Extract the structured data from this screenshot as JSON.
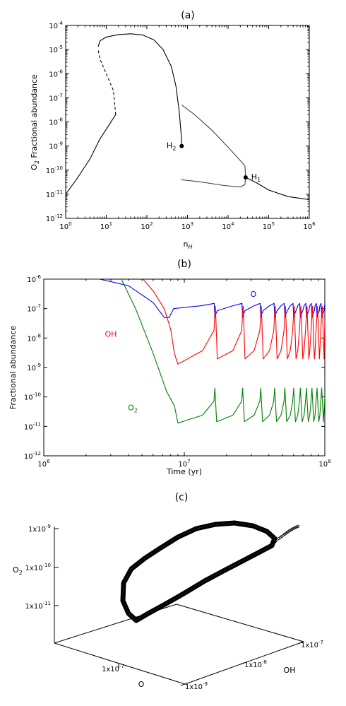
{
  "chart_data": [
    {
      "type": "line",
      "title": "(a)",
      "xlabel": "n_H",
      "ylabel": "O_2 Fractional abundance",
      "x_scale": "log",
      "y_scale": "log",
      "xlim": [
        1,
        1000000
      ],
      "ylim": [
        1e-12,
        0.0001
      ],
      "x_tick_labels": [
        {
          "base": "10",
          "exp": "0"
        },
        {
          "base": "10",
          "exp": "1"
        },
        {
          "base": "10",
          "exp": "2"
        },
        {
          "base": "10",
          "exp": "3"
        },
        {
          "base": "10",
          "exp": "4"
        },
        {
          "base": "10",
          "exp": "5"
        },
        {
          "base": "10",
          "exp": "6"
        }
      ],
      "y_tick_labels": [
        {
          "base": "10",
          "exp": "-12"
        },
        {
          "base": "10",
          "exp": "-11"
        },
        {
          "base": "10",
          "exp": "-10"
        },
        {
          "base": "10",
          "exp": "-9"
        },
        {
          "base": "10",
          "exp": "-8"
        },
        {
          "base": "10",
          "exp": "-7"
        },
        {
          "base": "10",
          "exp": "-6"
        },
        {
          "base": "10",
          "exp": "-5"
        },
        {
          "base": "10",
          "exp": "-4"
        }
      ],
      "series": [
        {
          "style": "solid",
          "color": "#000000",
          "points": [
            [
              1,
              1e-11
            ],
            [
              2,
              5e-11
            ],
            [
              4,
              3e-10
            ],
            [
              7,
              2e-09
            ],
            [
              12,
              8e-09
            ],
            [
              17,
              2e-08
            ]
          ]
        },
        {
          "style": "dashed",
          "color": "#000000",
          "points": [
            [
              17,
              2e-08
            ],
            [
              15,
              2e-07
            ],
            [
              10,
              1e-06
            ],
            [
              7,
              4e-06
            ],
            [
              6.3,
              1e-05
            ]
          ]
        },
        {
          "style": "solid",
          "color": "#000000",
          "points": [
            [
              6.3,
              1.3e-05
            ],
            [
              7,
              2.3e-05
            ],
            [
              10,
              3.3e-05
            ],
            [
              20,
              4.2e-05
            ],
            [
              40,
              4.5e-05
            ],
            [
              80,
              4e-05
            ],
            [
              150,
              2.5e-05
            ],
            [
              250,
              1e-05
            ],
            [
              400,
              2e-06
            ],
            [
              520,
              3e-07
            ],
            [
              620,
              3e-08
            ],
            [
              700,
              3e-09
            ],
            [
              720,
              1e-09
            ]
          ]
        },
        {
          "style": "solid",
          "color": "#444444",
          "points": [
            [
              720,
              5e-08
            ],
            [
              1500,
              2e-08
            ],
            [
              4000,
              4.5e-09
            ],
            [
              10000,
              9e-10
            ],
            [
              20000,
              2.5e-10
            ],
            [
              26000,
              1.5e-10
            ],
            [
              27000,
              5e-11
            ]
          ]
        },
        {
          "style": "solid",
          "color": "#444444",
          "points": [
            [
              700,
              4e-11
            ],
            [
              2000,
              3.3e-11
            ],
            [
              8000,
              2.3e-11
            ],
            [
              20000,
              2e-11
            ],
            [
              26000,
              2.5e-11
            ],
            [
              27000,
              5e-11
            ]
          ]
        },
        {
          "style": "solid",
          "color": "#000000",
          "points": [
            [
              27000,
              5e-11
            ],
            [
              50000,
              3e-11
            ],
            [
              100000,
              1.5e-11
            ],
            [
              300000,
              8e-12
            ],
            [
              1000000,
              6e-12
            ]
          ]
        }
      ],
      "markers": [
        {
          "label_base": "H",
          "label_sub": "2",
          "x": 720,
          "y": 1e-09,
          "label_side": "left"
        },
        {
          "label_base": "H",
          "label_sub": "1",
          "x": 27000,
          "y": 5e-11,
          "label_side": "right"
        }
      ]
    },
    {
      "type": "line",
      "title": "(b)",
      "xlabel": "Time (yr)",
      "ylabel": "Fractional abundance",
      "x_scale": "log",
      "y_scale": "log",
      "xlim": [
        1000000,
        100000000
      ],
      "ylim": [
        1e-12,
        1e-06
      ],
      "x_tick_labels": [
        {
          "base": "10",
          "exp": "6"
        },
        {
          "base": "10",
          "exp": "7"
        },
        {
          "base": "10",
          "exp": "8"
        }
      ],
      "y_tick_labels": [
        {
          "base": "10",
          "exp": "-12"
        },
        {
          "base": "10",
          "exp": "-11"
        },
        {
          "base": "10",
          "exp": "-10"
        },
        {
          "base": "10",
          "exp": "-9"
        },
        {
          "base": "10",
          "exp": "-8"
        },
        {
          "base": "10",
          "exp": "-7"
        },
        {
          "base": "10",
          "exp": "-6"
        }
      ],
      "oscillation_times": [
        16500000,
        26000000,
        35000000,
        44000000,
        52000000,
        60000000,
        67000000,
        74000000,
        81000000,
        88000000,
        95000000
      ],
      "series": [
        {
          "name": "O",
          "color": "#0000ff",
          "label_at": [
            31000000,
            2.5e-07
          ],
          "initial": [
            [
              1000000,
              1e-06
            ],
            [
              2500000,
              1e-06
            ],
            [
              4000000,
              6e-07
            ],
            [
              6000000,
              1.6e-07
            ],
            [
              7200000,
              5e-08
            ],
            [
              7800000,
              5e-08
            ],
            [
              8400000,
              1e-07
            ]
          ],
          "base": 1e-07,
          "peak": 1.5e-07,
          "dip": 5e-08
        },
        {
          "name": "OH",
          "color": "#ff0000",
          "label_at": [
            3000000,
            1.1e-08
          ],
          "initial": [
            [
              1000000,
              1.1e-06
            ],
            [
              5000000,
              1.1e-06
            ],
            [
              6000000,
              4e-07
            ],
            [
              7200000,
              1e-07
            ],
            [
              8000000,
              2e-08
            ],
            [
              8500000,
              3e-09
            ],
            [
              9000000,
              1.3e-09
            ]
          ],
          "base": 1.5e-09,
          "peak": 1.2e-07,
          "dip": 1.5e-09
        },
        {
          "name_base": "O",
          "name_sub": "2",
          "color": "#008000",
          "label_at": [
            4300000,
            3.5e-11
          ],
          "initial": [
            [
              1000000,
              1.2e-06
            ],
            [
              3500000,
              1.2e-06
            ],
            [
              4500000,
              1e-07
            ],
            [
              6000000,
              3e-09
            ],
            [
              7500000,
              1.5e-10
            ],
            [
              8500000,
              5e-11
            ],
            [
              9000000,
              1.3e-11
            ]
          ],
          "base": 1.2e-11,
          "peak": 2e-10,
          "dip": 1.2e-11
        }
      ]
    },
    {
      "type": "scatter",
      "title": "(c)",
      "projection": "3d",
      "axis_labels": [
        {
          "axis": "x",
          "name": "O"
        },
        {
          "axis": "y",
          "name": "OH"
        },
        {
          "axis": "z",
          "name_base": "O",
          "name_sub": "2"
        }
      ],
      "tick_labels": {
        "z": [
          {
            "base": "1x10",
            "exp": "-9"
          },
          {
            "base": "1x10",
            "exp": "-10"
          },
          {
            "base": "1x10",
            "exp": "-11"
          }
        ],
        "x": [
          {
            "base": "1x10",
            "exp": "-7"
          }
        ],
        "y": [
          {
            "base": "1x10",
            "exp": "-7"
          },
          {
            "base": "1x10",
            "exp": "-8"
          },
          {
            "base": "1x10",
            "exp": "-9"
          }
        ]
      },
      "marker_style": "open-circle-dense",
      "marker_color": "#000000"
    }
  ]
}
